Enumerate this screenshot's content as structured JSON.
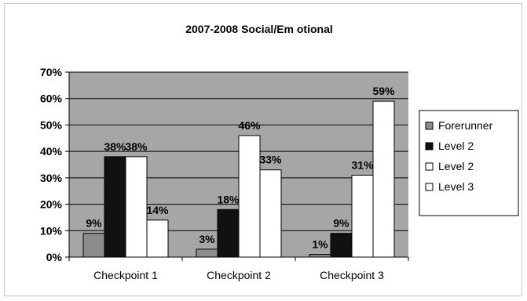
{
  "chart_data": {
    "type": "bar",
    "title": "2007-2008 Social/Em otional",
    "categories": [
      "Checkpoint 1",
      "Checkpoint 2",
      "Checkpoint 3"
    ],
    "series": [
      {
        "name": "Forerunner",
        "values": [
          9,
          3,
          1
        ],
        "labels": [
          "9%",
          "3%",
          "1%"
        ],
        "color": "#8c8c8c"
      },
      {
        "name": "Level 2",
        "values": [
          38,
          18,
          9
        ],
        "labels": [
          "38%",
          "18%",
          "9%"
        ],
        "color": "#111111"
      },
      {
        "name": "Level 2",
        "values": [
          38,
          46,
          31
        ],
        "labels": [
          "38%",
          "46%",
          "31%"
        ],
        "color": "#ffffff"
      },
      {
        "name": "Level 3",
        "values": [
          14,
          33,
          59
        ],
        "labels": [
          "14%",
          "33%",
          "59%"
        ],
        "color": "#ffffff"
      }
    ],
    "y_ticks": [
      "0%",
      "10%",
      "20%",
      "30%",
      "40%",
      "50%",
      "60%",
      "70%"
    ],
    "ylim": [
      0,
      70
    ],
    "grid": true,
    "plot_background": "#a6a6a6",
    "legend_position": "right"
  }
}
